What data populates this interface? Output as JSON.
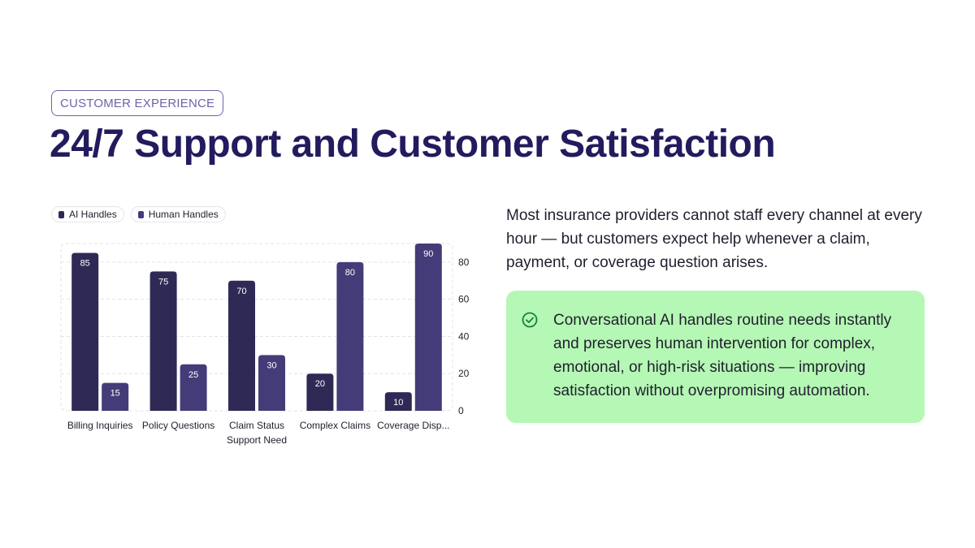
{
  "tag_label": "CUSTOMER EXPERIENCE",
  "title": "24/7 Support and Customer Satisfaction",
  "body_text": "Most insurance providers cannot staff every channel at every hour — but customers expect help whenever a claim, payment, or coverage question arises.",
  "callout": {
    "text": "Conversational AI handles routine needs instantly and preserves human intervention for complex, emotional, or high-risk situations — improving satisfaction without overpromising automation.",
    "icon": "check-circle-icon",
    "background": "#b5f7b4"
  },
  "chart_data": {
    "type": "bar",
    "categories": [
      "Billing Inquiries",
      "Policy Questions",
      "Claim Status",
      "Complex Claims",
      "Coverage Disp..."
    ],
    "series": [
      {
        "name": "AI Handles",
        "values": [
          85,
          75,
          70,
          20,
          10
        ],
        "color": "#2e2a55"
      },
      {
        "name": "Human Handles",
        "values": [
          15,
          25,
          30,
          80,
          90
        ],
        "color": "#443c78"
      }
    ],
    "xlabel": "Support Need",
    "ylabel": "",
    "ylim": [
      0,
      90
    ],
    "yticks": [
      0,
      20,
      40,
      60,
      80
    ],
    "y_axis_side": "right",
    "grid": true,
    "legend_position": "top-left",
    "data_labels": true
  }
}
